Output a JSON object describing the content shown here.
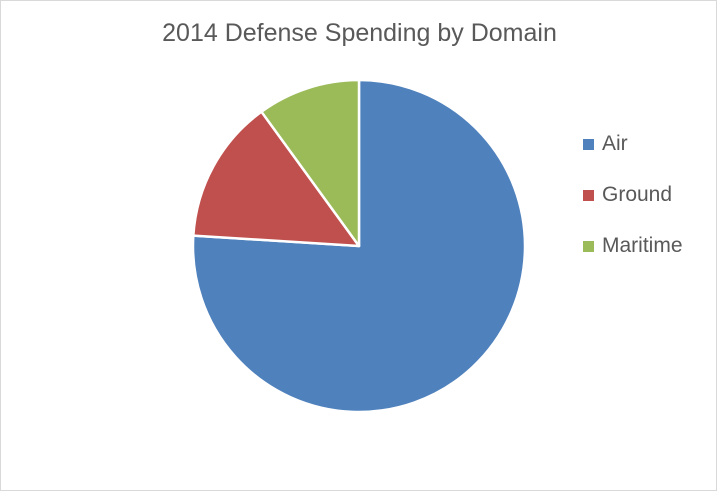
{
  "chart_data": {
    "type": "pie",
    "title": "2014 Defense Spending by Domain",
    "categories": [
      "Air",
      "Ground",
      "Maritime"
    ],
    "values": [
      76,
      14,
      10
    ],
    "colors": [
      "#4f81bd",
      "#c0504d",
      "#9bbb59"
    ],
    "legend_position": "right"
  }
}
